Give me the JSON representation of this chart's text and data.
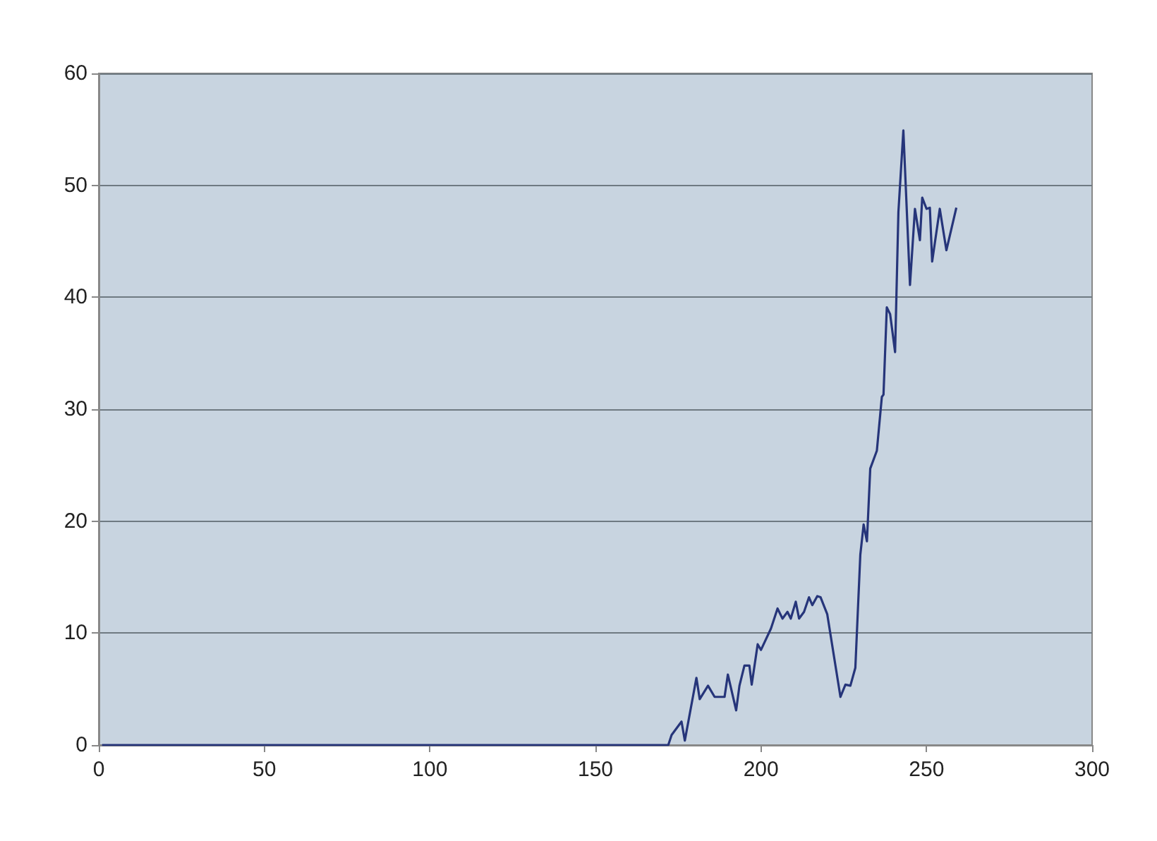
{
  "chart_data": {
    "type": "line",
    "xlim": [
      0,
      300
    ],
    "xticks": [
      0,
      50,
      100,
      150,
      200,
      250,
      300
    ],
    "ylim": [
      0,
      60
    ],
    "yticks": [
      0,
      10,
      20,
      30,
      40,
      50,
      60
    ],
    "grid": "y",
    "marker": "none",
    "line_style": "solid",
    "series": [
      {
        "color": "#26357a",
        "x": [
          1,
          50,
          100,
          150,
          172,
          173,
          176,
          177,
          180.5,
          181.5,
          184,
          186,
          189,
          190,
          192.5,
          193.5,
          195,
          196.5,
          197.2,
          199,
          200,
          203,
          205,
          206.5,
          208,
          209,
          210.5,
          211.5,
          213,
          214.5,
          215.5,
          217,
          218,
          220,
          224,
          225.5,
          227,
          228.5,
          230,
          231,
          232,
          233,
          235,
          236.5,
          237,
          238,
          239,
          240.5,
          241.5,
          243,
          245,
          246.5,
          248,
          248.7,
          250,
          251,
          251.7,
          254,
          256,
          259
        ],
        "values": [
          0,
          0,
          0,
          0,
          0,
          0.9,
          2.1,
          0.4,
          6,
          4.1,
          5.3,
          4.3,
          4.3,
          6.3,
          3.1,
          5.3,
          7.1,
          7.1,
          5.4,
          9,
          8.5,
          10.4,
          12.2,
          11.3,
          11.9,
          11.3,
          12.8,
          11.3,
          11.9,
          13.2,
          12.5,
          13.3,
          13.2,
          11.7,
          4.3,
          5.4,
          5.3,
          6.9,
          17,
          19.7,
          18.2,
          24.7,
          26.3,
          31.1,
          31.3,
          39.1,
          38.5,
          35.1,
          47.6,
          54.9,
          41.1,
          47.9,
          45.1,
          48.9,
          47.9,
          48,
          43.2,
          47.9,
          44.2,
          48
        ]
      }
    ]
  }
}
